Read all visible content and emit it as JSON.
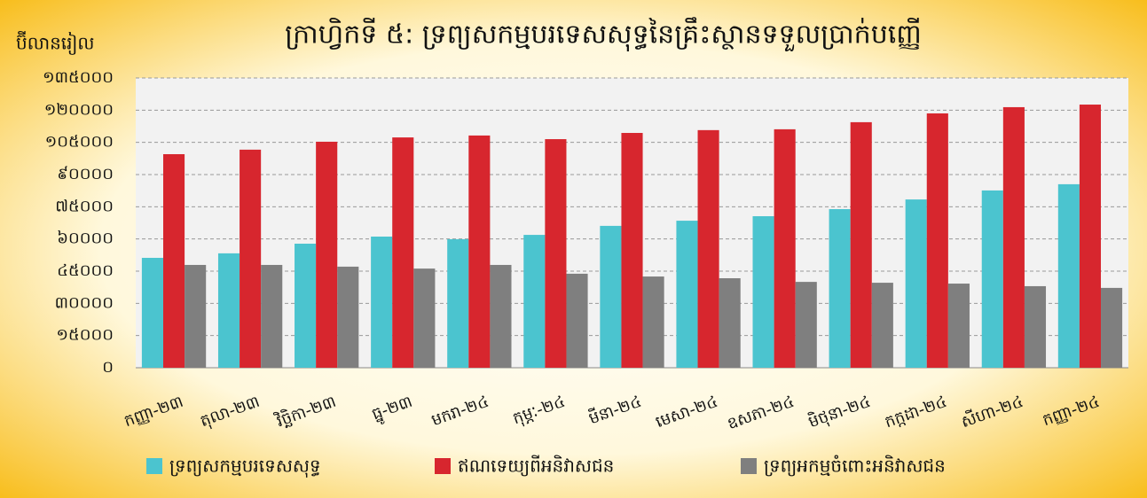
{
  "chart_data": {
    "type": "bar",
    "title": "ក្រាហ្វិកទី ៥: ទ្រព្យសកម្មបរទេសសុទ្ធនៃគ្រឹះស្ថានទទួលប្រាក់បញ្ញើ",
    "y_label": "ប៊ីលានរៀល",
    "categories": [
      "កញ្ញា-២៣",
      "តុលា-២៣",
      "វិច្ឆិកា-២៣",
      "ធ្នូ-២៣",
      "មករា-២៤",
      "កុម្ភៈ-២៤",
      "មីនា-២៤",
      "មេសា-២៤",
      "ឧសភា-២៤",
      "មិថុនា-២៤",
      "កក្កដា-២៤",
      "សីហា-២៤",
      "កញ្ញា-២៤"
    ],
    "series": [
      {
        "name": "ទ្រព្យសកម្មបរទេសសុទ្ធ",
        "color": "#4bc4cf",
        "values": [
          51200,
          53300,
          57800,
          61100,
          59900,
          61900,
          66100,
          68500,
          70600,
          73900,
          78400,
          82600,
          85500
        ]
      },
      {
        "name": "ឥណទេយ្យពីអនិវាសជន",
        "color": "#d7262e",
        "values": [
          99500,
          101600,
          105300,
          107300,
          108200,
          106500,
          109400,
          110700,
          111100,
          114400,
          118500,
          121400,
          122600
        ]
      },
      {
        "name": "ទ្រព្យអកម្មចំពោះអនិវាសជន",
        "color": "#7f7f7f",
        "values": [
          47900,
          47900,
          47100,
          46200,
          47900,
          43800,
          42500,
          41700,
          40000,
          39600,
          39200,
          38000,
          37200
        ]
      }
    ],
    "ylim": [
      0,
      135000
    ],
    "yticks": [
      {
        "value": 0,
        "label": "០"
      },
      {
        "value": 15000,
        "label": "១៥០០០"
      },
      {
        "value": 30000,
        "label": "៣០០០០"
      },
      {
        "value": 45000,
        "label": "៤៥០០០"
      },
      {
        "value": 60000,
        "label": "៦០០០០"
      },
      {
        "value": 75000,
        "label": "៧៥០០០"
      },
      {
        "value": 90000,
        "label": "៩០០០០"
      },
      {
        "value": 105000,
        "label": "១០៥០០០"
      },
      {
        "value": 120000,
        "label": "១២០០០០"
      },
      {
        "value": 135000,
        "label": "១៣៥០០០"
      }
    ],
    "grid": true,
    "legend": "bottom"
  }
}
